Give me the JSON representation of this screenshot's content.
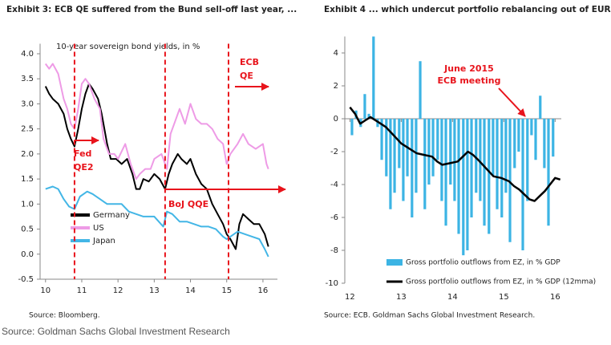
{
  "chart_data": [
    {
      "type": "line",
      "title": "Exhibit 3: ECB QE suffered from the Bund sell-off last year, ...",
      "subtitle": "10-year sovereign bond yields, in %",
      "source": "Source: Bloomberg.",
      "xlim": [
        9.85,
        16.4
      ],
      "xticks": [
        10,
        11,
        12,
        13,
        14,
        15,
        16
      ],
      "ylim": [
        -0.5,
        4.2
      ],
      "yticks": [
        {
          "value": 4,
          "label": "4.0"
        },
        3.5,
        {
          "value": 3,
          "label": "3.0"
        },
        2.5,
        {
          "value": 2,
          "label": "2.0"
        },
        1.5,
        {
          "value": 1,
          "label": "1.0"
        },
        0.5,
        {
          "value": 0,
          "label": "0.0"
        },
        -0.5
      ],
      "legend": "lower left",
      "series": [
        {
          "name": "Germany",
          "color": "#000000",
          "x": [
            10.0,
            10.1,
            10.2,
            10.35,
            10.5,
            10.6,
            10.7,
            10.8,
            10.9,
            11.0,
            11.1,
            11.2,
            11.3,
            11.45,
            11.55,
            11.7,
            11.8,
            11.95,
            12.1,
            12.25,
            12.4,
            12.5,
            12.6,
            12.7,
            12.85,
            13.0,
            13.15,
            13.3,
            13.4,
            13.5,
            13.65,
            13.75,
            13.9,
            14.0,
            14.15,
            14.3,
            14.45,
            14.6,
            14.75,
            14.9,
            15.0,
            15.1,
            15.25,
            15.35,
            15.45,
            15.6,
            15.75,
            15.9,
            16.05,
            16.15
          ],
          "values": [
            3.35,
            3.2,
            3.1,
            3.0,
            2.8,
            2.5,
            2.3,
            2.15,
            2.5,
            2.9,
            3.2,
            3.4,
            3.3,
            3.1,
            2.8,
            2.2,
            1.9,
            1.9,
            1.8,
            1.9,
            1.6,
            1.3,
            1.3,
            1.5,
            1.45,
            1.6,
            1.5,
            1.3,
            1.6,
            1.8,
            2.0,
            1.9,
            1.8,
            1.9,
            1.6,
            1.4,
            1.3,
            1.0,
            0.8,
            0.6,
            0.4,
            0.3,
            0.1,
            0.6,
            0.8,
            0.7,
            0.6,
            0.6,
            0.4,
            0.15
          ]
        },
        {
          "name": "US",
          "color": "#ee9be6",
          "x": [
            10.0,
            10.1,
            10.2,
            10.35,
            10.5,
            10.6,
            10.7,
            10.8,
            10.9,
            11.0,
            11.1,
            11.2,
            11.35,
            11.5,
            11.6,
            11.75,
            11.9,
            12.0,
            12.2,
            12.35,
            12.5,
            12.6,
            12.75,
            12.9,
            13.0,
            13.2,
            13.35,
            13.45,
            13.6,
            13.7,
            13.85,
            14.0,
            14.15,
            14.3,
            14.45,
            14.6,
            14.75,
            14.9,
            15.0,
            15.1,
            15.3,
            15.45,
            15.6,
            15.8,
            16.0,
            16.1,
            16.15
          ],
          "values": [
            3.8,
            3.7,
            3.8,
            3.6,
            3.1,
            2.9,
            2.6,
            2.5,
            2.9,
            3.4,
            3.5,
            3.4,
            3.1,
            2.9,
            2.3,
            2.0,
            2.0,
            1.9,
            2.2,
            1.8,
            1.5,
            1.6,
            1.7,
            1.7,
            1.9,
            2.0,
            1.7,
            2.4,
            2.7,
            2.9,
            2.6,
            3.0,
            2.7,
            2.6,
            2.6,
            2.5,
            2.3,
            2.2,
            1.8,
            2.0,
            2.2,
            2.4,
            2.2,
            2.1,
            2.2,
            1.8,
            1.7
          ]
        },
        {
          "name": "Japan",
          "color": "#43b6e6",
          "x": [
            10.0,
            10.2,
            10.35,
            10.5,
            10.65,
            10.8,
            10.95,
            11.15,
            11.3,
            11.5,
            11.7,
            11.9,
            12.1,
            12.3,
            12.5,
            12.7,
            12.9,
            13.0,
            13.25,
            13.35,
            13.5,
            13.7,
            13.9,
            14.1,
            14.3,
            14.5,
            14.7,
            14.9,
            15.0,
            15.1,
            15.3,
            15.5,
            15.7,
            15.9,
            16.05,
            16.15
          ],
          "values": [
            1.3,
            1.35,
            1.3,
            1.1,
            0.95,
            0.9,
            1.15,
            1.25,
            1.2,
            1.1,
            1.0,
            1.0,
            1.0,
            0.85,
            0.8,
            0.75,
            0.75,
            0.75,
            0.55,
            0.85,
            0.8,
            0.65,
            0.65,
            0.6,
            0.55,
            0.55,
            0.5,
            0.35,
            0.3,
            0.35,
            0.45,
            0.4,
            0.35,
            0.3,
            0.1,
            -0.05
          ]
        }
      ],
      "events": [
        {
          "x": 10.8,
          "label": [
            "Fed",
            "QE2"
          ]
        },
        {
          "x": 13.3,
          "label": [
            "BoJ QQE"
          ]
        },
        {
          "x": 15.05,
          "label": [
            "ECB",
            "QE"
          ]
        }
      ]
    },
    {
      "type": "bar",
      "title": "Exhibit 4 ... which undercut portfolio rebalancing out of EUR.",
      "source": "Source: ECB. Goldman Sachs Global Investment Research.",
      "xlim": [
        11.9,
        16.12
      ],
      "xticks": [
        12,
        13,
        14,
        15,
        16
      ],
      "ylim": [
        -10,
        5
      ],
      "yticks": [
        4,
        2,
        0,
        -2,
        -4,
        -6,
        -8,
        -10
      ],
      "legend": "lower center",
      "annotation": [
        "June 2015",
        "ECB meeting"
      ],
      "series": [
        {
          "name": "Gross portfolio outflows from EZ, in % GDP",
          "color": "#3cb4e4",
          "type": "bar",
          "x": [
            12.04,
            12.12,
            12.21,
            12.29,
            12.37,
            12.46,
            12.54,
            12.62,
            12.71,
            12.79,
            12.87,
            12.96,
            13.04,
            13.12,
            13.21,
            13.29,
            13.37,
            13.46,
            13.54,
            13.62,
            13.71,
            13.79,
            13.87,
            13.96,
            14.04,
            14.12,
            14.21,
            14.29,
            14.37,
            14.46,
            14.54,
            14.62,
            14.71,
            14.79,
            14.87,
            14.96,
            15.04,
            15.12,
            15.21,
            15.29,
            15.37,
            15.46,
            15.54,
            15.62,
            15.71,
            15.79,
            15.87,
            15.96
          ],
          "values": [
            -1.0,
            0.5,
            -0.5,
            1.5,
            0.3,
            5.0,
            -0.5,
            -2.5,
            -3.5,
            -5.5,
            -4.5,
            -3.0,
            -5.0,
            -3.5,
            -6.0,
            -4.5,
            3.5,
            -5.5,
            -4.0,
            -3.5,
            -2.5,
            -5.0,
            -6.5,
            -4.0,
            -5.0,
            -7.0,
            -8.3,
            -8.0,
            -6.0,
            -4.5,
            -5.0,
            -6.5,
            -7.0,
            -3.5,
            -5.5,
            -6.0,
            -4.5,
            -7.5,
            -3.0,
            -2.0,
            -8.0,
            -5.0,
            -1.0,
            -2.5,
            1.4,
            -3.0,
            -6.5,
            -2.3
          ]
        },
        {
          "name": "Gross portfolio outflows from EZ, in % GDP (12mma)",
          "color": "#000000",
          "type": "line",
          "x": [
            12.0,
            12.1,
            12.2,
            12.3,
            12.4,
            12.55,
            12.7,
            12.85,
            13.0,
            13.15,
            13.3,
            13.45,
            13.6,
            13.7,
            13.8,
            13.95,
            14.1,
            14.2,
            14.3,
            14.4,
            14.5,
            14.65,
            14.8,
            14.95,
            15.1,
            15.2,
            15.3,
            15.4,
            15.5,
            15.6,
            15.7,
            15.8,
            15.9,
            16.0,
            16.1
          ],
          "values": [
            0.7,
            0.3,
            -0.3,
            -0.1,
            0.1,
            -0.2,
            -0.5,
            -1.0,
            -1.5,
            -1.8,
            -2.1,
            -2.2,
            -2.3,
            -2.6,
            -2.8,
            -2.7,
            -2.6,
            -2.3,
            -2.0,
            -2.2,
            -2.5,
            -3.0,
            -3.5,
            -3.6,
            -3.8,
            -4.1,
            -4.3,
            -4.6,
            -4.9,
            -5.0,
            -4.7,
            -4.4,
            -4.0,
            -3.6,
            -3.7
          ]
        }
      ]
    }
  ],
  "footer": "Source: Goldman Sachs Global Investment Research"
}
